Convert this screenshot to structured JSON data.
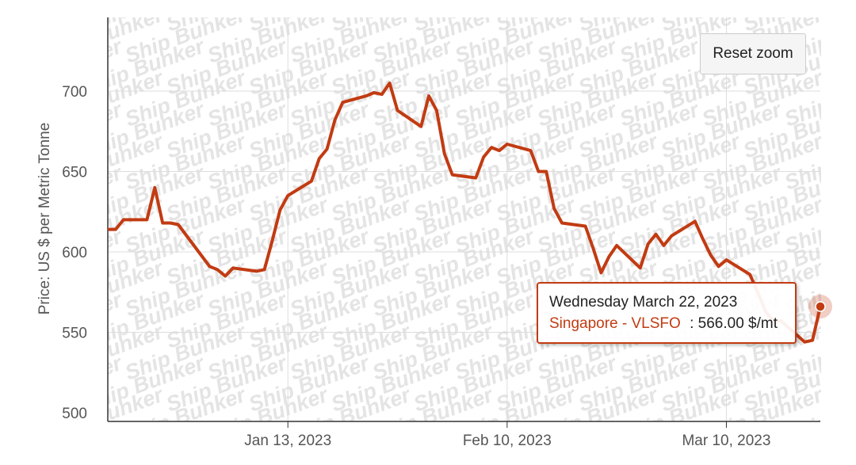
{
  "watermark_text": "Ship Bunker",
  "reset_zoom_label": "Reset zoom",
  "tooltip": {
    "date": "Wednesday March 22, 2023",
    "series": "Singapore - VLSFO",
    "separator": ":",
    "value_text": "566.00 $/mt"
  },
  "colors": {
    "line": "#c23b12",
    "grid": "#dddddd",
    "axis": "#333333"
  },
  "chart_data": {
    "type": "line",
    "title": "",
    "xlabel": "",
    "ylabel": "Price: US $ per Metric Tonne",
    "ylim": [
      500,
      700
    ],
    "yticks": [
      "500",
      "550",
      "600",
      "650",
      "700"
    ],
    "xticks": [
      "Jan 13, 2023",
      "Feb 10, 2023",
      "Mar 10, 2023"
    ],
    "x_start": "2022-12-21",
    "x_end": "2023-03-22",
    "grid": true,
    "series": [
      {
        "name": "Singapore - VLSFO",
        "points": [
          [
            "2022-12-21",
            614
          ],
          [
            "2022-12-22",
            614
          ],
          [
            "2022-12-23",
            620
          ],
          [
            "2022-12-26",
            620
          ],
          [
            "2022-12-27",
            640
          ],
          [
            "2022-12-28",
            618
          ],
          [
            "2022-12-29",
            618
          ],
          [
            "2022-12-30",
            617
          ],
          [
            "2023-01-03",
            591
          ],
          [
            "2023-01-04",
            589
          ],
          [
            "2023-01-05",
            585
          ],
          [
            "2023-01-06",
            590
          ],
          [
            "2023-01-09",
            588
          ],
          [
            "2023-01-10",
            589
          ],
          [
            "2023-01-11",
            607
          ],
          [
            "2023-01-12",
            626
          ],
          [
            "2023-01-13",
            635
          ],
          [
            "2023-01-16",
            644
          ],
          [
            "2023-01-17",
            658
          ],
          [
            "2023-01-18",
            664
          ],
          [
            "2023-01-19",
            682
          ],
          [
            "2023-01-20",
            693
          ],
          [
            "2023-01-23",
            697
          ],
          [
            "2023-01-24",
            699
          ],
          [
            "2023-01-25",
            698
          ],
          [
            "2023-01-26",
            705
          ],
          [
            "2023-01-27",
            688
          ],
          [
            "2023-01-30",
            678
          ],
          [
            "2023-01-31",
            697
          ],
          [
            "2023-02-01",
            688
          ],
          [
            "2023-02-02",
            661
          ],
          [
            "2023-02-03",
            648
          ],
          [
            "2023-02-06",
            646
          ],
          [
            "2023-02-07",
            659
          ],
          [
            "2023-02-08",
            665
          ],
          [
            "2023-02-09",
            663
          ],
          [
            "2023-02-10",
            667
          ],
          [
            "2023-02-13",
            663
          ],
          [
            "2023-02-14",
            650
          ],
          [
            "2023-02-15",
            650
          ],
          [
            "2023-02-16",
            627
          ],
          [
            "2023-02-17",
            618
          ],
          [
            "2023-02-20",
            616
          ],
          [
            "2023-02-21",
            602
          ],
          [
            "2023-02-22",
            587
          ],
          [
            "2023-02-23",
            597
          ],
          [
            "2023-02-24",
            604
          ],
          [
            "2023-02-27",
            590
          ],
          [
            "2023-02-28",
            605
          ],
          [
            "2023-03-01",
            611
          ],
          [
            "2023-03-02",
            604
          ],
          [
            "2023-03-03",
            610
          ],
          [
            "2023-03-06",
            619
          ],
          [
            "2023-03-07",
            608
          ],
          [
            "2023-03-08",
            598
          ],
          [
            "2023-03-09",
            591
          ],
          [
            "2023-03-10",
            595
          ],
          [
            "2023-03-13",
            586
          ],
          [
            "2023-03-14",
            575
          ],
          [
            "2023-03-15",
            563
          ],
          [
            "2023-03-16",
            557
          ],
          [
            "2023-03-17",
            557
          ],
          [
            "2023-03-20",
            544
          ],
          [
            "2023-03-21",
            545
          ],
          [
            "2023-03-22",
            566
          ]
        ]
      }
    ],
    "highlight_point": [
      "2023-03-22",
      566
    ]
  }
}
